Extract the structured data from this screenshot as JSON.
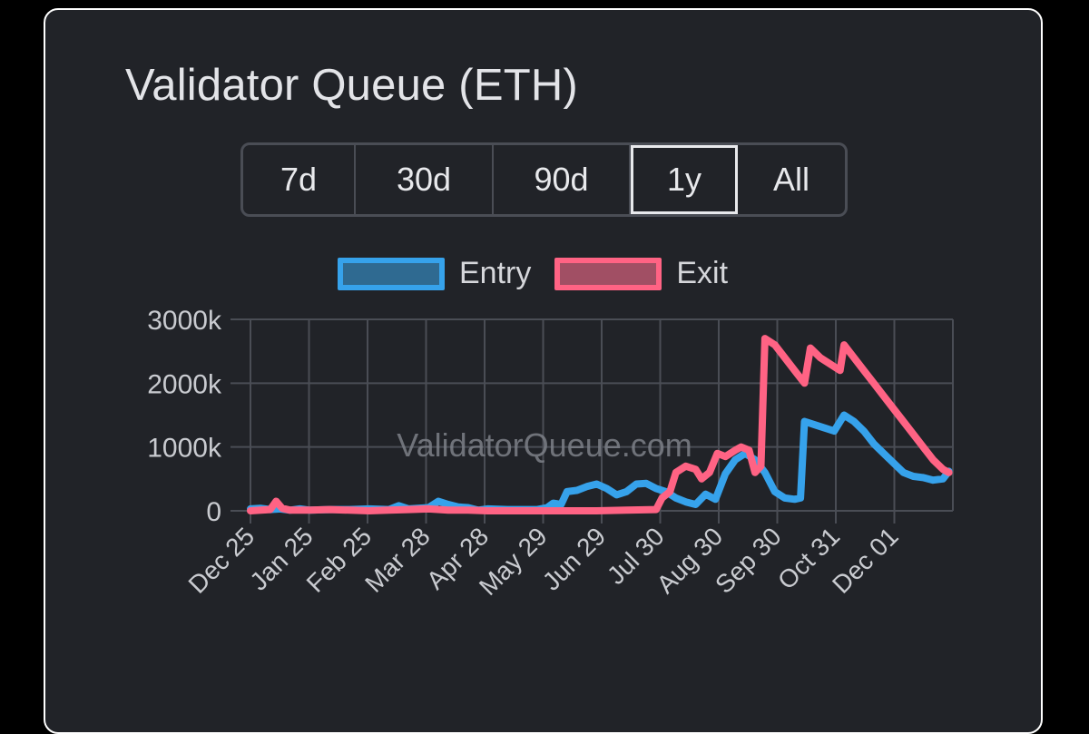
{
  "title": "Validator Queue (ETH)",
  "ranges": [
    "7d",
    "30d",
    "90d",
    "1y",
    "All"
  ],
  "selected_range": "1y",
  "watermark": "ValidatorQueue.com",
  "colors": {
    "card_bg": "#212328",
    "entry": "#36a2eb",
    "entry_fill": "#2f6a91",
    "exit": "#ff6384",
    "exit_fill": "#a14f64",
    "grid": "#4a4d55",
    "text": "#c9cbd0"
  },
  "legend": [
    {
      "label": "Entry",
      "series": "entry"
    },
    {
      "label": "Exit",
      "series": "exit"
    }
  ],
  "chart_data": {
    "type": "line",
    "title": "Validator Queue (ETH)",
    "xlabel": "",
    "ylabel": "",
    "ylim": [
      0,
      3000
    ],
    "y_unit": "k ETH",
    "y_ticks": [
      "0",
      "1000k",
      "2000k",
      "3000k"
    ],
    "x_ticks": [
      "Dec 25",
      "Jan 25",
      "Feb 25",
      "Mar 28",
      "Apr 28",
      "May 29",
      "Jun 29",
      "Jul 30",
      "Aug 30",
      "Sep 30",
      "Oct 31",
      "Dec 01"
    ],
    "x_range_days": [
      0,
      355
    ],
    "series": [
      {
        "name": "Entry",
        "points": [
          [
            0,
            30
          ],
          [
            5,
            40
          ],
          [
            10,
            20
          ],
          [
            15,
            30
          ],
          [
            20,
            10
          ],
          [
            25,
            30
          ],
          [
            30,
            10
          ],
          [
            40,
            20
          ],
          [
            50,
            20
          ],
          [
            60,
            30
          ],
          [
            70,
            20
          ],
          [
            75,
            80
          ],
          [
            80,
            30
          ],
          [
            90,
            50
          ],
          [
            95,
            150
          ],
          [
            100,
            100
          ],
          [
            105,
            60
          ],
          [
            110,
            50
          ],
          [
            115,
            10
          ],
          [
            120,
            30
          ],
          [
            130,
            20
          ],
          [
            145,
            20
          ],
          [
            150,
            50
          ],
          [
            153,
            120
          ],
          [
            157,
            100
          ],
          [
            160,
            300
          ],
          [
            165,
            320
          ],
          [
            170,
            380
          ],
          [
            175,
            420
          ],
          [
            180,
            350
          ],
          [
            185,
            250
          ],
          [
            190,
            300
          ],
          [
            195,
            420
          ],
          [
            200,
            430
          ],
          [
            205,
            350
          ],
          [
            210,
            300
          ],
          [
            215,
            200
          ],
          [
            220,
            140
          ],
          [
            225,
            100
          ],
          [
            230,
            260
          ],
          [
            235,
            180
          ],
          [
            240,
            580
          ],
          [
            245,
            800
          ],
          [
            250,
            900
          ],
          [
            255,
            800
          ],
          [
            260,
            600
          ],
          [
            265,
            300
          ],
          [
            270,
            200
          ],
          [
            275,
            180
          ],
          [
            278,
            200
          ],
          [
            280,
            1400
          ],
          [
            285,
            1350
          ],
          [
            290,
            1300
          ],
          [
            295,
            1250
          ],
          [
            300,
            1500
          ],
          [
            305,
            1400
          ],
          [
            310,
            1250
          ],
          [
            315,
            1050
          ],
          [
            320,
            900
          ],
          [
            325,
            750
          ],
          [
            330,
            600
          ],
          [
            335,
            540
          ],
          [
            340,
            520
          ],
          [
            345,
            480
          ],
          [
            350,
            500
          ],
          [
            353,
            620
          ]
        ]
      },
      {
        "name": "Exit",
        "points": [
          [
            0,
            0
          ],
          [
            10,
            20
          ],
          [
            13,
            150
          ],
          [
            16,
            40
          ],
          [
            20,
            10
          ],
          [
            30,
            10
          ],
          [
            40,
            20
          ],
          [
            50,
            10
          ],
          [
            60,
            0
          ],
          [
            70,
            10
          ],
          [
            80,
            20
          ],
          [
            90,
            30
          ],
          [
            100,
            10
          ],
          [
            110,
            10
          ],
          [
            120,
            0
          ],
          [
            135,
            0
          ],
          [
            150,
            0
          ],
          [
            165,
            0
          ],
          [
            175,
            0
          ],
          [
            190,
            10
          ],
          [
            205,
            20
          ],
          [
            208,
            200
          ],
          [
            212,
            300
          ],
          [
            215,
            600
          ],
          [
            220,
            700
          ],
          [
            225,
            650
          ],
          [
            228,
            500
          ],
          [
            232,
            600
          ],
          [
            236,
            900
          ],
          [
            240,
            850
          ],
          [
            245,
            950
          ],
          [
            248,
            1000
          ],
          [
            252,
            950
          ],
          [
            255,
            600
          ],
          [
            258,
            700
          ],
          [
            260,
            2700
          ],
          [
            265,
            2600
          ],
          [
            270,
            2400
          ],
          [
            275,
            2200
          ],
          [
            280,
            2000
          ],
          [
            283,
            2550
          ],
          [
            288,
            2400
          ],
          [
            293,
            2300
          ],
          [
            298,
            2200
          ],
          [
            300,
            2600
          ],
          [
            305,
            2400
          ],
          [
            310,
            2200
          ],
          [
            315,
            2000
          ],
          [
            320,
            1800
          ],
          [
            325,
            1600
          ],
          [
            330,
            1400
          ],
          [
            335,
            1200
          ],
          [
            340,
            1000
          ],
          [
            345,
            800
          ],
          [
            350,
            650
          ],
          [
            353,
            600
          ]
        ]
      }
    ]
  }
}
